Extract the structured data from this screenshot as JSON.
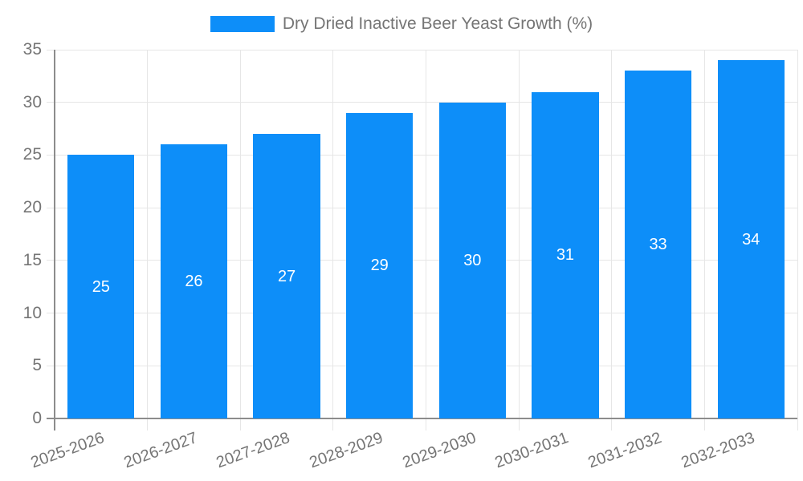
{
  "chart_data": {
    "type": "bar",
    "legend": "Dry Dried Inactive Beer Yeast Growth (%)",
    "categories": [
      "2025-2026",
      "2026-2027",
      "2027-2028",
      "2028-2029",
      "2029-2030",
      "2030-2031",
      "2031-2032",
      "2032-2033"
    ],
    "values": [
      25,
      26,
      27,
      29,
      30,
      31,
      33,
      34
    ],
    "bar_labels": [
      "25",
      "26",
      "27",
      "29",
      "30",
      "31",
      "33",
      "34"
    ],
    "yticks": [
      0,
      5,
      10,
      15,
      20,
      25,
      30,
      35
    ],
    "ylim": [
      0,
      35
    ],
    "xlabel": "",
    "ylabel": "",
    "grid": true,
    "legend_position": "top",
    "colors": {
      "bar": "#0d8ef9",
      "bar_label": "#ffffff",
      "grid": "#e6e6e6",
      "axis": "#8c8c8c",
      "tick_label": "#757575",
      "background": "#ffffff"
    }
  }
}
